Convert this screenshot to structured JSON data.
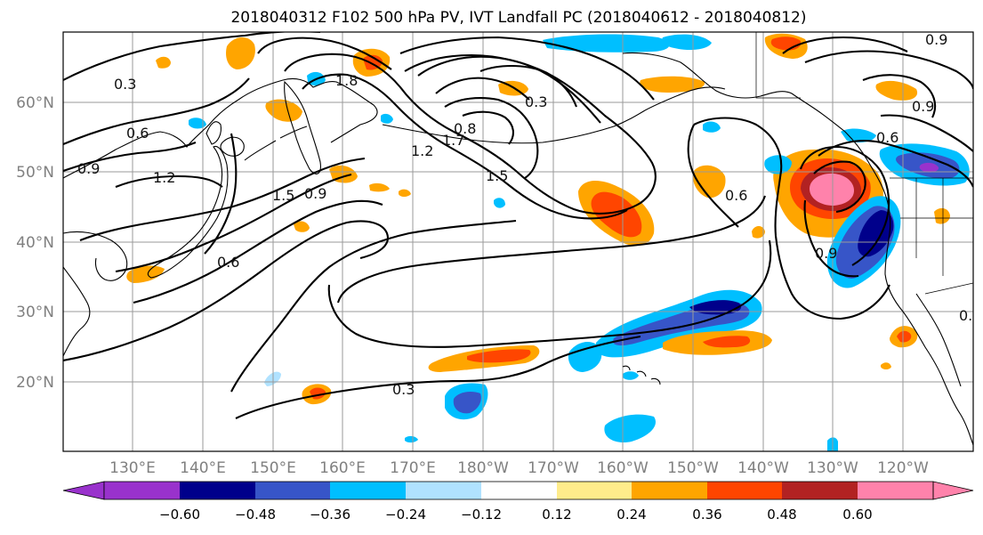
{
  "title": "2018040312 F102 500 hPa PV, IVT Landfall PC (2018040612 - 2018040812)",
  "lat_labels": [
    "60°N",
    "50°N",
    "40°N",
    "30°N",
    "20°N"
  ],
  "lon_labels": [
    "130°E",
    "140°E",
    "150°E",
    "160°E",
    "170°E",
    "180°W",
    "170°W",
    "160°W",
    "150°W",
    "140°W",
    "130°W",
    "120°W"
  ],
  "contour_labels": [
    "0.3",
    "0.6",
    "0.9",
    "1.2",
    "1.5",
    "1.8",
    "0.3",
    "0.8",
    "1.2",
    "1.5",
    "1.7",
    "0.3",
    "0.6",
    "0.9",
    "0.6",
    "0.6",
    "0.9",
    "0.9",
    "0.9",
    "0.3"
  ],
  "colorbar": {
    "ticks": [
      "−0.60",
      "−0.48",
      "−0.36",
      "−0.24",
      "−0.12",
      "0.12",
      "0.24",
      "0.36",
      "0.48",
      "0.60"
    ],
    "colors": [
      "#9932cc",
      "#00008b",
      "#3755c8",
      "#00bfff",
      "#b0e2ff",
      "#ffffff",
      "#ffec8b",
      "#ffa500",
      "#ff4500",
      "#b22222",
      "#ff82ab"
    ]
  }
}
